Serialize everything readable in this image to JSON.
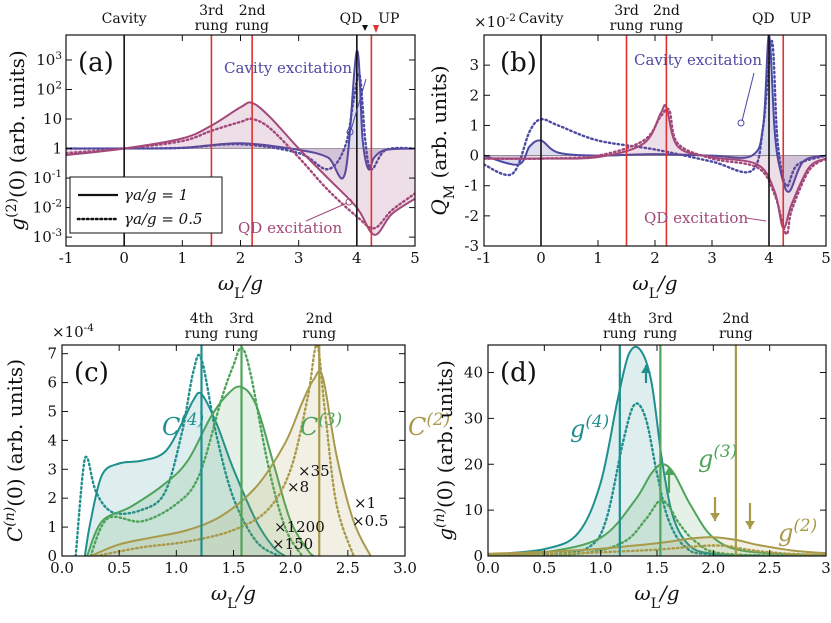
{
  "figure": "four-panel spectroscopy figure",
  "colors": {
    "cavity": "#4c4aa3",
    "qd": "#a3487a",
    "red": "#e03030",
    "teal": "#1f8f8d",
    "green": "#4ea45a",
    "olive": "#a89a4a",
    "black": "#111111"
  },
  "chart_data": [
    {
      "panel": "(a)",
      "type": "line",
      "title": "",
      "xlabel": "ωL/g",
      "ylabel": "g(2)(0) (arb. units)",
      "yscale": "log",
      "xlim": [
        -1,
        5
      ],
      "ylim": [
        0.0005,
        7000
      ],
      "x_ticks": [
        "-1",
        "0",
        "1",
        "2",
        "3",
        "4",
        "5"
      ],
      "y_ticks": [
        "10^-3",
        "10^-2",
        "10^-1",
        "1",
        "10",
        "10^2",
        "10^3"
      ],
      "top_labels": [
        "Cavity",
        "3rd rung",
        "2nd rung",
        "QD",
        "UP"
      ],
      "vlines": [
        {
          "x": 0,
          "label": "Cavity"
        },
        {
          "x": 1.5,
          "label": "3rd rung"
        },
        {
          "x": 2.2,
          "label": "2nd rung"
        },
        {
          "x": 4.0,
          "label": "QD"
        },
        {
          "x": 4.25,
          "label": "UP"
        }
      ],
      "annotations": [
        "Cavity excitation",
        "QD excitation"
      ],
      "legend": [
        "γa/g = 1",
        "γa/g = 0.5"
      ],
      "series": [
        {
          "name": "Cavity excitation γa/g=1",
          "style": "solid",
          "x": [
            -1,
            0,
            1,
            2,
            3,
            3.5,
            3.8,
            4.0,
            4.1,
            4.2,
            4.3,
            4.5,
            5
          ],
          "values": [
            1,
            1,
            1.05,
            1.5,
            0.9,
            0.5,
            0.15,
            2000,
            2,
            0.2,
            0.5,
            0.9,
            1
          ]
        },
        {
          "name": "Cavity excitation γa/g=0.5",
          "style": "dotted",
          "x": [
            -1,
            0,
            1,
            2,
            3,
            3.5,
            3.8,
            3.95,
            4.05,
            4.15,
            4.25,
            4.5,
            5
          ],
          "values": [
            1,
            1,
            1.05,
            1.4,
            0.7,
            0.2,
            1.2,
            50,
            300,
            1.5,
            0.2,
            0.9,
            1
          ]
        },
        {
          "name": "QD excitation γa/g=1",
          "style": "solid",
          "x": [
            -1,
            0,
            1,
            1.5,
            2,
            2.2,
            2.5,
            3,
            3.5,
            4,
            4.3,
            4.6,
            5
          ],
          "values": [
            0.6,
            1,
            2.2,
            6,
            25,
            35,
            12,
            1,
            0.1,
            0.01,
            0.0012,
            0.006,
            0.02
          ]
        },
        {
          "name": "QD excitation γa/g=0.5",
          "style": "dotted",
          "x": [
            -1,
            0,
            1,
            1.5,
            2,
            2.2,
            2.5,
            3,
            3.5,
            4,
            4.3,
            4.6,
            5
          ],
          "values": [
            0.7,
            1,
            1.8,
            4,
            8,
            10,
            5,
            0.5,
            0.04,
            0.005,
            0.002,
            0.008,
            0.03
          ]
        }
      ]
    },
    {
      "panel": "(b)",
      "type": "line",
      "xlabel": "ωL/g",
      "ylabel": "QM (arb. units)",
      "y_multiplier": "×10^-2",
      "xlim": [
        -1,
        5
      ],
      "ylim": [
        -3,
        4
      ],
      "x_ticks": [
        "-1",
        "0",
        "1",
        "2",
        "3",
        "4",
        "5"
      ],
      "y_ticks": [
        "-3",
        "-2",
        "-1",
        "0",
        "1",
        "2",
        "3"
      ],
      "top_labels": [
        "Cavity",
        "3rd rung",
        "2nd rung",
        "QD",
        "UP"
      ],
      "vlines": [
        {
          "x": 0
        },
        {
          "x": 1.5
        },
        {
          "x": 2.2
        },
        {
          "x": 4.0
        },
        {
          "x": 4.25
        }
      ],
      "annotations": [
        "Cavity excitation",
        "QD excitation"
      ],
      "series": [
        {
          "name": "Cavity excitation γa/g=1",
          "style": "solid",
          "x": [
            -1,
            -0.4,
            -0.2,
            0,
            0.3,
            1,
            2,
            3,
            3.7,
            3.9,
            4.0,
            4.1,
            4.2,
            4.35,
            4.6,
            5
          ],
          "values": [
            0,
            -0.3,
            0.3,
            0.5,
            0.1,
            0,
            0.05,
            0,
            0,
            1,
            4,
            0.8,
            -0.5,
            -1.2,
            -0.2,
            0
          ]
        },
        {
          "name": "Cavity excitation γa/g=0.5",
          "style": "dotted",
          "x": [
            -1,
            -0.5,
            -0.2,
            0,
            0.3,
            1,
            2,
            3,
            3.7,
            3.9,
            4.05,
            4.15,
            4.3,
            4.5,
            5
          ],
          "values": [
            -0.3,
            -0.6,
            0.8,
            1.2,
            1.0,
            0.5,
            0.2,
            -0.2,
            -0.5,
            1,
            3.8,
            0.5,
            -1,
            -0.3,
            0
          ]
        },
        {
          "name": "QD excitation γa/g=1",
          "style": "solid",
          "x": [
            -1,
            0,
            1,
            1.8,
            2.1,
            2.2,
            2.4,
            3,
            3.8,
            4.1,
            4.25,
            4.4,
            4.7,
            5
          ],
          "values": [
            -0.1,
            -0.1,
            -0.05,
            0.4,
            1.4,
            1.6,
            0.3,
            -0.05,
            -0.3,
            -1.2,
            -2.4,
            -1.6,
            -0.4,
            -0.1
          ]
        },
        {
          "name": "QD excitation γa/g=0.5",
          "style": "dotted",
          "x": [
            -1,
            0,
            1,
            1.8,
            2.1,
            2.25,
            2.4,
            3,
            3.8,
            4.1,
            4.3,
            4.4,
            4.7,
            5
          ],
          "values": [
            -0.1,
            -0.1,
            0,
            0.5,
            1.3,
            1.5,
            0.4,
            -0.1,
            -0.4,
            -1.3,
            -2.6,
            -1.8,
            -0.5,
            -0.1
          ]
        }
      ]
    },
    {
      "panel": "(c)",
      "type": "area",
      "xlabel": "ωL/g",
      "ylabel": "C(n)(0) (arb. units)",
      "y_multiplier": "×10^-4",
      "xlim": [
        0,
        3
      ],
      "ylim": [
        0,
        7.3
      ],
      "x_ticks": [
        "0.0",
        "0.5",
        "1.0",
        "1.5",
        "2.0",
        "2.5",
        "3.0"
      ],
      "y_ticks": [
        "0",
        "1",
        "2",
        "3",
        "4",
        "5",
        "6",
        "7"
      ],
      "top_labels": [
        "4th rung",
        "3rd rung",
        "2nd rung"
      ],
      "vlines": [
        {
          "x": 1.22,
          "color": "teal"
        },
        {
          "x": 1.57,
          "color": "green"
        },
        {
          "x": 2.25,
          "color": "olive"
        }
      ],
      "curve_labels": [
        "C(4)",
        "C(3)",
        "C(2)"
      ],
      "scale_factors": [
        "×35",
        "×8",
        "×1200",
        "×150",
        "×1",
        "×0.5"
      ],
      "series": [
        {
          "name": "C(4) γa/g=1",
          "style": "solid",
          "color": "teal",
          "x": [
            0.2,
            0.25,
            0.35,
            0.5,
            0.7,
            0.9,
            1.05,
            1.15,
            1.22,
            1.35,
            1.5,
            1.7,
            1.85,
            1.95
          ],
          "values": [
            0,
            1.2,
            2.8,
            3.2,
            3.3,
            3.6,
            4.6,
            5.4,
            5.6,
            4.6,
            3,
            1.2,
            0.3,
            0
          ]
        },
        {
          "name": "C(4) γa/g=0.5",
          "style": "dotted",
          "color": "teal",
          "x": [
            0.12,
            0.18,
            0.22,
            0.3,
            0.45,
            0.7,
            0.9,
            1.05,
            1.15,
            1.22,
            1.35,
            1.5,
            1.7,
            1.9
          ],
          "values": [
            0,
            2.8,
            3.4,
            2.2,
            1.5,
            1.6,
            2.2,
            4.3,
            6.4,
            6.8,
            4.2,
            2,
            0.5,
            0
          ]
        },
        {
          "name": "C(3) γa/g=1",
          "style": "solid",
          "color": "green",
          "x": [
            0.22,
            0.35,
            0.6,
            0.9,
            1.1,
            1.3,
            1.45,
            1.57,
            1.7,
            1.85,
            2.0,
            2.15,
            2.2
          ],
          "values": [
            0,
            1.2,
            1.7,
            2.5,
            3.3,
            4.8,
            5.6,
            5.85,
            5.2,
            3.2,
            1.2,
            0.2,
            0
          ]
        },
        {
          "name": "C(3) γa/g=0.5",
          "style": "dotted",
          "color": "green",
          "x": [
            0.25,
            0.4,
            0.7,
            1.0,
            1.2,
            1.4,
            1.5,
            1.57,
            1.65,
            1.8,
            1.95,
            2.1
          ],
          "values": [
            0,
            1.3,
            1.2,
            1.8,
            2.8,
            5.5,
            6.6,
            7.2,
            6.3,
            3.2,
            1,
            0
          ]
        },
        {
          "name": "C(2) γa/g=1",
          "style": "solid",
          "color": "olive",
          "x": [
            0.25,
            0.5,
            0.8,
            1.1,
            1.4,
            1.7,
            1.95,
            2.1,
            2.2,
            2.28,
            2.4,
            2.55,
            2.7
          ],
          "values": [
            0,
            0.4,
            0.65,
            0.9,
            1.4,
            2.4,
            3.9,
            5.3,
            6.1,
            6.2,
            3.5,
            1.2,
            0
          ]
        },
        {
          "name": "C(2) γa/g=0.5",
          "style": "dotted",
          "color": "olive",
          "x": [
            0.3,
            0.7,
            1.1,
            1.5,
            1.8,
            2.0,
            2.15,
            2.23,
            2.3,
            2.4,
            2.55
          ],
          "values": [
            0,
            0.3,
            0.5,
            0.9,
            1.6,
            3,
            5.5,
            7.3,
            5,
            1.8,
            0
          ]
        }
      ]
    },
    {
      "panel": "(d)",
      "type": "area",
      "xlabel": "ωL/g",
      "ylabel": "g(n)(0) (arb. units)",
      "xlim": [
        0,
        3
      ],
      "ylim": [
        0,
        46
      ],
      "x_ticks": [
        "0.0",
        "0.5",
        "1.0",
        "1.5",
        "2.0",
        "2.5",
        "3"
      ],
      "y_ticks": [
        "0",
        "10",
        "20",
        "30",
        "40"
      ],
      "top_labels": [
        "4th rung",
        "3rd rung",
        "2nd rung"
      ],
      "vlines": [
        {
          "x": 1.17,
          "color": "teal"
        },
        {
          "x": 1.53,
          "color": "green"
        },
        {
          "x": 2.2,
          "color": "olive"
        }
      ],
      "curve_labels": [
        "g(4)",
        "g(3)",
        "g(2)"
      ],
      "series": [
        {
          "name": "g(4) γa/g=1",
          "style": "solid",
          "color": "teal",
          "x": [
            0,
            0.5,
            0.8,
            1.0,
            1.15,
            1.25,
            1.35,
            1.45,
            1.55,
            1.65,
            1.8,
            2.0,
            2.3,
            3
          ],
          "values": [
            0.3,
            1.5,
            5,
            16,
            34,
            44,
            45,
            38,
            20,
            8,
            2,
            0.5,
            0.1,
            0
          ]
        },
        {
          "name": "g(4) γa/g=0.5",
          "style": "dotted",
          "color": "teal",
          "x": [
            0,
            0.6,
            0.9,
            1.05,
            1.2,
            1.3,
            1.4,
            1.5,
            1.6,
            1.75,
            2.0,
            3
          ],
          "values": [
            0.1,
            0.5,
            2,
            8,
            25,
            33,
            30,
            18,
            8,
            2,
            0.3,
            0
          ]
        },
        {
          "name": "g(3) γa/g=1",
          "style": "solid",
          "color": "green",
          "x": [
            0,
            0.5,
            1.0,
            1.3,
            1.45,
            1.55,
            1.65,
            1.8,
            2.0,
            2.3,
            3
          ],
          "values": [
            0.2,
            0.8,
            4,
            12,
            18,
            20,
            18,
            11,
            4,
            1,
            0.2
          ]
        },
        {
          "name": "g(3) γa/g=0.5",
          "style": "dotted",
          "color": "green",
          "x": [
            0,
            0.8,
            1.2,
            1.4,
            1.52,
            1.6,
            1.7,
            1.85,
            2.1,
            3
          ],
          "values": [
            0,
            0.5,
            3,
            8,
            12,
            11,
            7,
            3,
            0.5,
            0
          ]
        },
        {
          "name": "g(2) γa/g=1",
          "style": "solid",
          "color": "olive",
          "x": [
            0,
            0.5,
            1.0,
            1.5,
            1.8,
            2.0,
            2.2,
            2.4,
            2.7,
            3
          ],
          "values": [
            0.5,
            0.9,
            1.6,
            2.8,
            3.8,
            4.1,
            3.5,
            2.4,
            1.2,
            0.6
          ]
        },
        {
          "name": "g(2) γa/g=0.5",
          "style": "dotted",
          "color": "olive",
          "x": [
            0,
            0.6,
            1.0,
            1.5,
            1.8,
            2.0,
            2.15,
            2.3,
            2.6,
            3
          ],
          "values": [
            0.2,
            0.5,
            0.8,
            1.4,
            2,
            2.3,
            2.1,
            1.4,
            0.6,
            0.2
          ]
        }
      ]
    }
  ]
}
